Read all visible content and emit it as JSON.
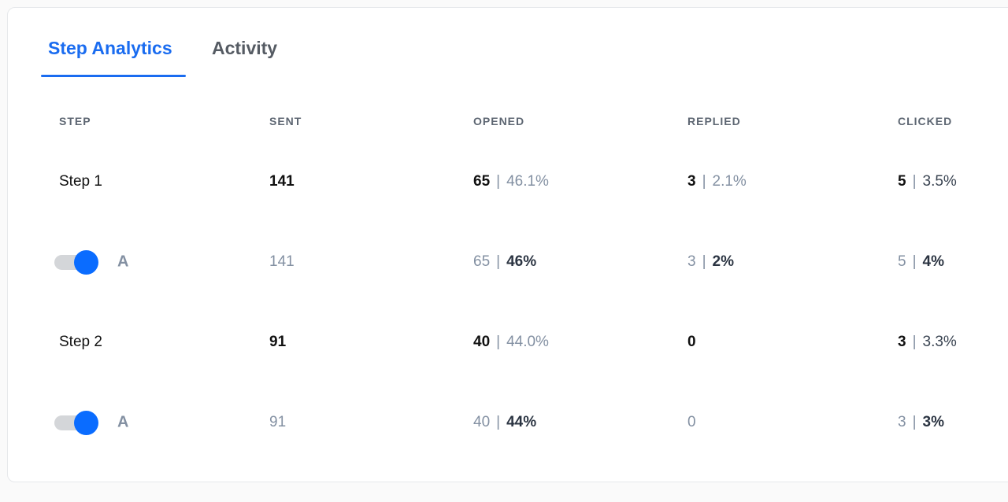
{
  "tabs": [
    {
      "label": "Step Analytics",
      "active": true
    },
    {
      "label": "Activity",
      "active": false
    }
  ],
  "columns": [
    "STEP",
    "SENT",
    "OPENED",
    "REPLIED",
    "CLICKED"
  ],
  "rows": [
    {
      "type": "step",
      "step": "Step 1",
      "sent": "141",
      "opened": "65",
      "opened_pct": "46.1%",
      "replied": "3",
      "replied_pct": "2.1%",
      "clicked": "5",
      "clicked_pct": "3.5%"
    },
    {
      "type": "variant",
      "step": "A",
      "enabled": true,
      "sent": "141",
      "opened": "65",
      "opened_pct": "46%",
      "replied": "3",
      "replied_pct": "2%",
      "clicked": "5",
      "clicked_pct": "4%"
    },
    {
      "type": "step",
      "step": "Step 2",
      "sent": "91",
      "opened": "40",
      "opened_pct": "44.0%",
      "replied": "0",
      "clicked": "3",
      "clicked_pct": "3.3%"
    },
    {
      "type": "variant",
      "step": "A",
      "enabled": true,
      "sent": "91",
      "opened": "40",
      "opened_pct": "44%",
      "replied": "0",
      "clicked": "3",
      "clicked_pct": "3%"
    }
  ],
  "separator": "|",
  "colors": {
    "accent": "#1a6cf0",
    "toggle_on": "#0a6cff"
  }
}
